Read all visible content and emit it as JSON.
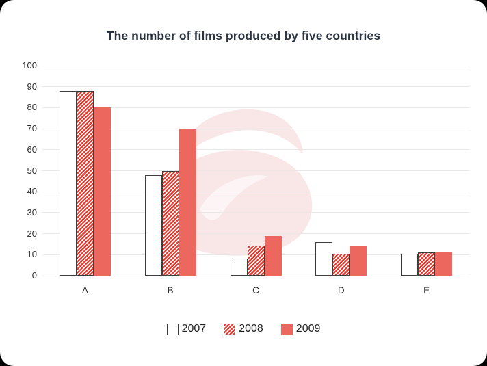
{
  "title": "The number of films produced by five countries",
  "chart_data": {
    "type": "bar",
    "title": "The number of films produced by five countries",
    "categories": [
      "A",
      "B",
      "C",
      "D",
      "E"
    ],
    "series": [
      {
        "name": "2007",
        "style": "outline",
        "values": [
          88,
          48,
          8,
          16,
          10.5
        ]
      },
      {
        "name": "2008",
        "style": "hatch",
        "values": [
          88,
          50,
          14.5,
          10.5,
          11
        ]
      },
      {
        "name": "2009",
        "style": "solid",
        "values": [
          80,
          70,
          19,
          14,
          11.5
        ]
      }
    ],
    "ylim": [
      0,
      100
    ],
    "yticks": [
      0,
      10,
      20,
      30,
      40,
      50,
      60,
      70,
      80,
      90,
      100
    ],
    "grid": true,
    "legend_position": "bottom",
    "colors": {
      "solid_bar": "#ec675d",
      "hatch_stripe": "#e73a2e",
      "bar_border": "#3e3e3e",
      "gridline": "#e8e8e8",
      "title_text": "#2b3440",
      "tick_text": "#2b2b2b",
      "watermark_pink": "#f9e6e6",
      "watermark_inner": "#fdf5f5"
    }
  },
  "legend": {
    "items": [
      {
        "label": "2007"
      },
      {
        "label": "2008"
      },
      {
        "label": "2009"
      }
    ]
  }
}
